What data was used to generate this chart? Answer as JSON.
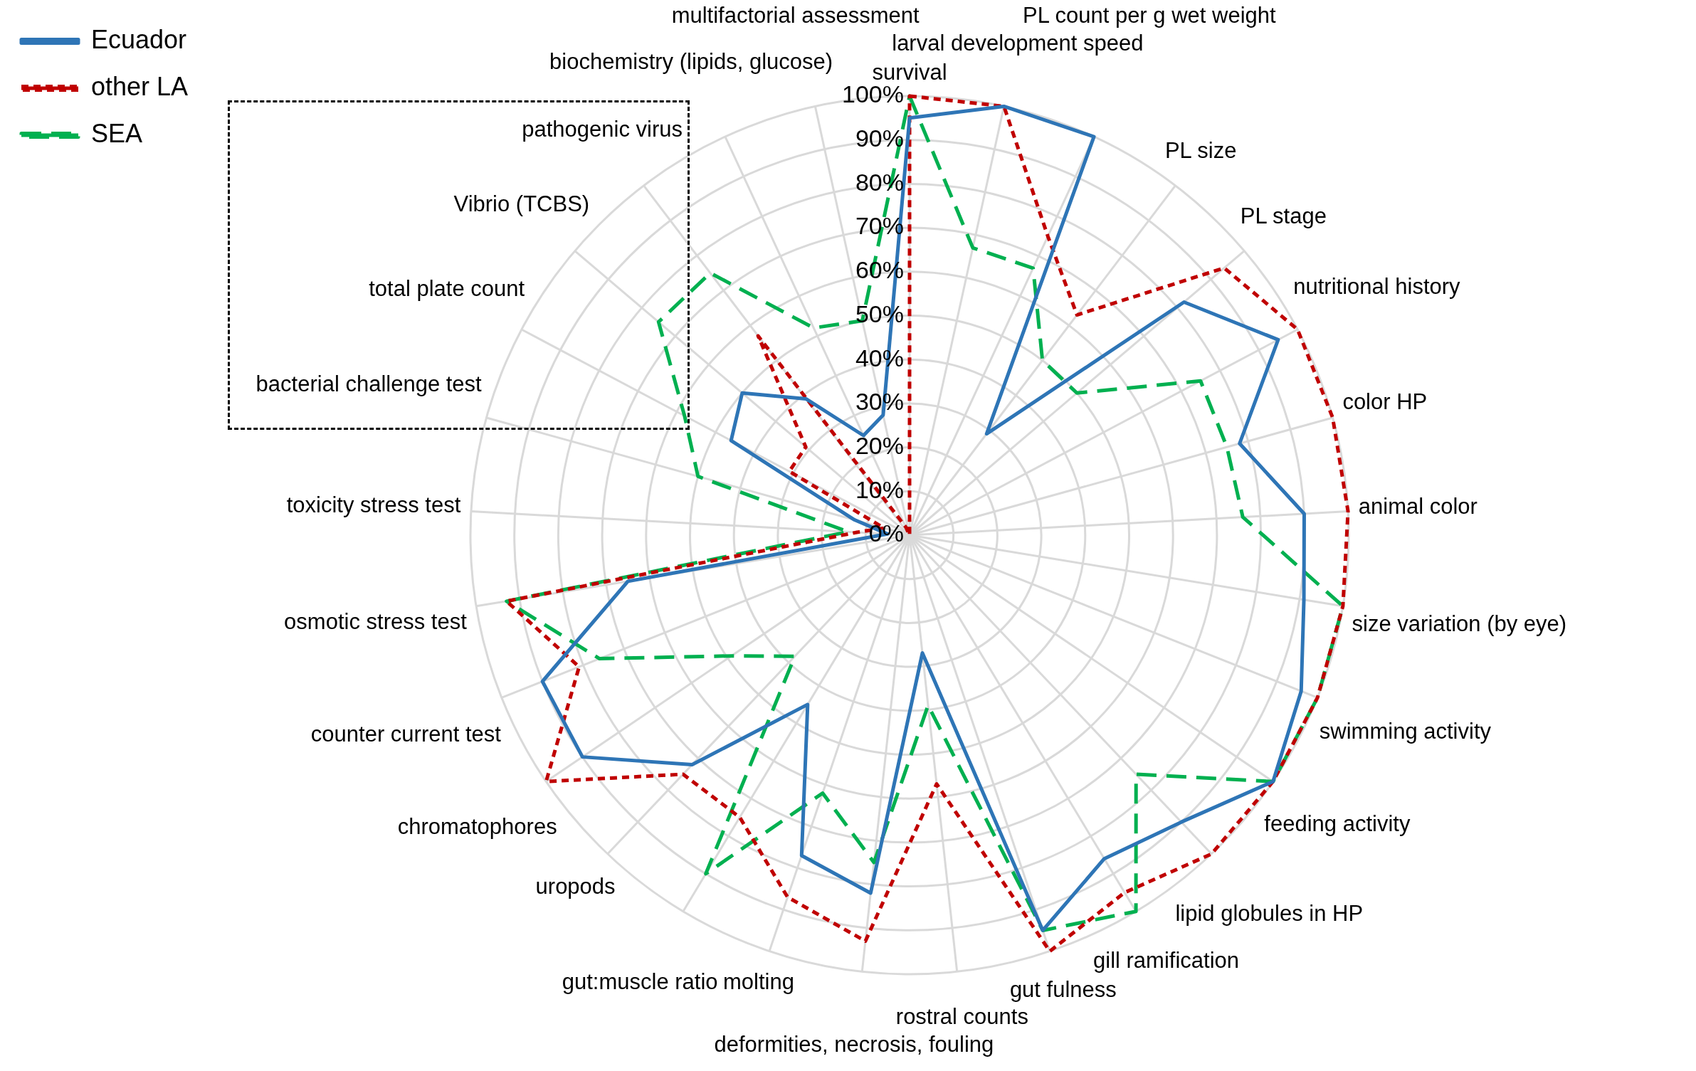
{
  "chart_data": {
    "type": "radar",
    "categories": [
      "survival",
      "larval development speed",
      "PL count per g wet weight",
      "PL size",
      "PL stage",
      "nutritional history",
      "color HP",
      "animal color",
      "size variation (by eye)",
      "swimming activity",
      "feeding activity",
      "lipid globules in HP",
      "gill ramification",
      "gut fulness",
      "rostral counts",
      "deformities, necrosis, fouling",
      "molting",
      "gut:muscle ratio",
      "uropods",
      "chromatophores",
      "counter current test",
      "osmotic stress test",
      "toxicity stress test",
      "bacterial challenge test",
      "total plate count",
      "Vibrio (TCBS)",
      "pathogenic virus",
      "biochemistry (lipids, glucose)",
      "multifactorial assessment"
    ],
    "series": [
      {
        "name": "Ecuador",
        "color": "#2e75b6",
        "line_style": "solid",
        "values": [
          95,
          100,
          100,
          29,
          82,
          95,
          78,
          90,
          91,
          96,
          100,
          90,
          86,
          95,
          27,
          82,
          77,
          45,
          72,
          90,
          90,
          65,
          5,
          13,
          46,
          50,
          39,
          25,
          28
        ]
      },
      {
        "name": "other LA",
        "color": "#c00000",
        "line_style": "dotted",
        "values": [
          100,
          100,
          75,
          63,
          94,
          100,
          100,
          100,
          100,
          100,
          100,
          100,
          95,
          100,
          57,
          93,
          87,
          75,
          75,
          100,
          81,
          93,
          12,
          6,
          31,
          31,
          57,
          2,
          0
        ]
      },
      {
        "name": "SEA",
        "color": "#00b050",
        "line_style": "dashed",
        "values": [
          100,
          67,
          67,
          50,
          50,
          75,
          75,
          76,
          100,
          100,
          100,
          75,
          100,
          95,
          39,
          75,
          62,
          90,
          38,
          49,
          76,
          93,
          14,
          50,
          58,
          75,
          75,
          52,
          50
        ]
      }
    ],
    "ylim": [
      0,
      100
    ],
    "yticks": [
      {
        "value": 0,
        "label": "0%"
      },
      {
        "value": 10,
        "label": "10%"
      },
      {
        "value": 20,
        "label": "20%"
      },
      {
        "value": 30,
        "label": "30%"
      },
      {
        "value": 40,
        "label": "40%"
      },
      {
        "value": 50,
        "label": "50%"
      },
      {
        "value": 60,
        "label": "60%"
      },
      {
        "value": 70,
        "label": "70%"
      },
      {
        "value": 80,
        "label": "80%"
      },
      {
        "value": 90,
        "label": "90%"
      },
      {
        "value": 100,
        "label": "100%"
      }
    ],
    "grid": true,
    "legend": "top left"
  }
}
